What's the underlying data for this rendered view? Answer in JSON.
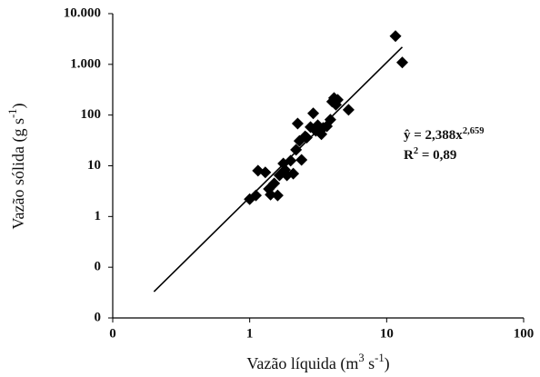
{
  "chart_data": {
    "type": "scatter",
    "x_scale": "log",
    "y_scale": "log",
    "xlim": [
      0.1,
      100
    ],
    "ylim": [
      0.01,
      10000
    ],
    "xticks": [
      {
        "value": 0.1,
        "label": "0"
      },
      1,
      10,
      100
    ],
    "yticks": [
      {
        "value": 0.01,
        "label": "0"
      },
      {
        "value": 0.1,
        "label": "0"
      },
      1,
      10,
      100,
      {
        "value": 1000,
        "label": "1.000"
      },
      {
        "value": 10000,
        "label": "10.000"
      }
    ],
    "grid": false,
    "x_label": [
      {
        "text": "Vazão líquida (m"
      },
      {
        "text": "3",
        "sup": true
      },
      {
        "text": " s"
      },
      {
        "text": "-1",
        "sup": true
      },
      {
        "text": ")"
      }
    ],
    "y_label": [
      {
        "text": "Vazão sólida (g s"
      },
      {
        "text": "-1",
        "sup": true
      },
      {
        "text": ")"
      }
    ],
    "series": [
      {
        "color": "#000000",
        "marker": "diamond",
        "x": [
          1.0,
          1.11,
          1.15,
          1.3,
          1.38,
          1.42,
          1.51,
          1.6,
          1.65,
          1.76,
          1.81,
          1.87,
          1.99,
          2.08,
          2.18,
          2.24,
          2.31,
          2.39,
          2.54,
          2.61,
          2.78,
          2.91,
          3.04,
          3.14,
          3.34,
          3.44,
          3.66,
          3.88,
          4.0,
          4.13,
          4.26,
          4.39,
          5.27,
          11.6,
          13.0
        ],
        "values": [
          2.2,
          2.6,
          8.0,
          7.4,
          3.5,
          2.7,
          4.5,
          2.6,
          6.5,
          11.1,
          8.3,
          6.5,
          12.6,
          7.0,
          20.7,
          68,
          31,
          13.1,
          38,
          36,
          58,
          108,
          49,
          63,
          42,
          56,
          60,
          81,
          184,
          217,
          160,
          200,
          127,
          3600,
          1090
        ]
      }
    ],
    "trendline": {
      "color": "#000000",
      "x": [
        0.2,
        13
      ],
      "values": [
        0.033,
        2188
      ]
    },
    "equation": [
      {
        "text": "ŷ = 2,388x"
      },
      {
        "text": "2,659",
        "sup": true
      }
    ],
    "r_squared": [
      {
        "text": "R"
      },
      {
        "text": "2",
        "sup": true
      },
      {
        "text": " = 0,89"
      }
    ]
  }
}
